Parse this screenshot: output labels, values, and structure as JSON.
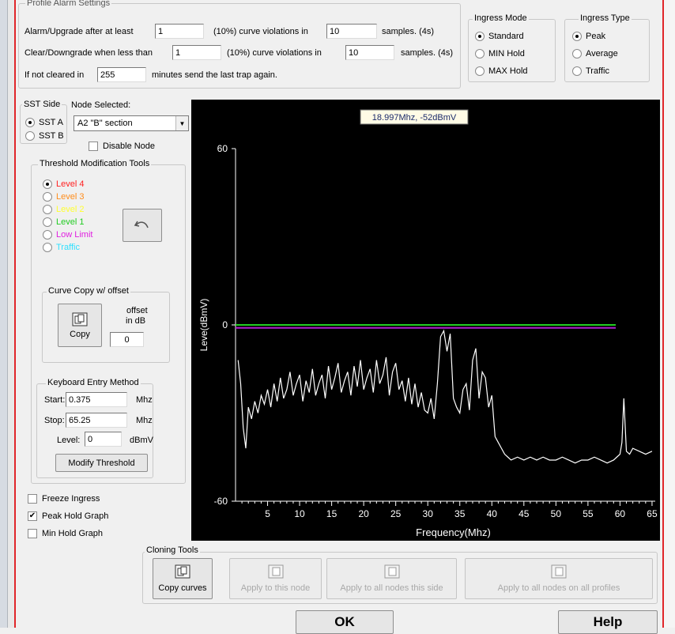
{
  "profile_alarm": {
    "title": "Profile Alarm Settings",
    "row1": {
      "prefix": "Alarm/Upgrade after at least",
      "count": "1",
      "mid": "(10%) curve violations in",
      "samples": "10",
      "suffix": "samples. (4s)"
    },
    "row2": {
      "prefix": "Clear/Downgrade when less than",
      "count": "1",
      "mid": "(10%) curve violations in",
      "samples": "10",
      "suffix": "samples. (4s)"
    },
    "row3": {
      "prefix": "If not cleared in",
      "minutes": "255",
      "suffix": "minutes send the last trap again."
    }
  },
  "ingress_mode": {
    "title": "Ingress Mode",
    "options": [
      "Standard",
      "MIN Hold",
      "MAX Hold"
    ],
    "selected": 0
  },
  "ingress_type": {
    "title": "Ingress Type",
    "options": [
      "Peak",
      "Average",
      "Traffic"
    ],
    "selected": 0
  },
  "sst_side": {
    "title": "SST Side",
    "options": [
      "SST A",
      "SST B"
    ],
    "selected": 0
  },
  "node_selected": {
    "title": "Node Selected:",
    "value": "A2 \"B\" section",
    "disable_label": "Disable Node"
  },
  "threshold_tools": {
    "title": "Threshold Modification Tools",
    "levels": [
      {
        "label": "Level 4",
        "color": "#ff2020",
        "checked": true
      },
      {
        "label": "Level 3",
        "color": "#ff8c1a",
        "checked": false
      },
      {
        "label": "Level 2",
        "color": "#ffff30",
        "checked": false
      },
      {
        "label": "Level 1",
        "color": "#22cc22",
        "checked": false
      },
      {
        "label": "Low Limit",
        "color": "#e020e0",
        "checked": false
      },
      {
        "label": "Traffic",
        "color": "#30e0ff",
        "checked": false
      }
    ],
    "undo_icon": "undo-arrow-icon"
  },
  "curve_copy": {
    "title": "Curve Copy w/ offset",
    "copy_label": "Copy",
    "offset_label_1": "offset",
    "offset_label_2": "in dB",
    "offset_value": "0"
  },
  "keyboard_entry": {
    "title": "Keyboard Entry Method",
    "start_label": "Start:",
    "start_value": "0.375",
    "start_unit": "Mhz",
    "stop_label": "Stop:",
    "stop_value": "65.25",
    "stop_unit": "Mhz",
    "level_label": "Level:",
    "level_value": "0",
    "level_unit": "dBmV",
    "modify_label": "Modify Threshold"
  },
  "options": [
    {
      "label": "Freeze Ingress",
      "checked": false
    },
    {
      "label": "Peak Hold Graph",
      "checked": true
    },
    {
      "label": "Min Hold Graph",
      "checked": false
    }
  ],
  "chart_data": {
    "type": "line",
    "xlabel": "Frequency(Mhz)",
    "ylabel": "Leve(dBmV)",
    "xlim": [
      0,
      65.5
    ],
    "ylim": [
      -60,
      60
    ],
    "xticks": [
      5,
      10,
      15,
      20,
      25,
      30,
      35,
      40,
      45,
      50,
      55,
      60,
      65
    ],
    "yticks": [
      60,
      0,
      -60
    ],
    "tooltip": "18.997Mhz, -52dBmV",
    "threshold_lines": [
      {
        "name": "Level 1",
        "value": 0,
        "color": "#22cc22"
      },
      {
        "name": "Low Limit",
        "value": -1,
        "color": "#b020d0"
      }
    ],
    "series": [
      {
        "color": "#ffffff",
        "x": [
          0.4,
          0.8,
          1.2,
          1.6,
          2.0,
          2.5,
          3.0,
          3.5,
          4.0,
          4.5,
          5.0,
          5.5,
          6.0,
          6.5,
          7.0,
          7.5,
          8.0,
          8.5,
          9.0,
          9.5,
          10.0,
          10.5,
          11.0,
          11.5,
          12.0,
          12.5,
          13.0,
          13.5,
          14.0,
          14.5,
          15.0,
          15.5,
          16.0,
          16.5,
          17.0,
          17.5,
          18.0,
          18.5,
          19.0,
          19.5,
          20.0,
          20.5,
          21.0,
          21.5,
          22.0,
          22.5,
          23.0,
          23.5,
          24.0,
          24.5,
          25.0,
          25.5,
          26.0,
          26.5,
          27.0,
          27.5,
          28.0,
          28.5,
          29.0,
          29.5,
          30.0,
          30.5,
          31.0,
          31.5,
          32.0,
          32.5,
          33.0,
          33.5,
          34.0,
          34.5,
          35.0,
          35.5,
          36.0,
          36.5,
          37.0,
          37.5,
          38.0,
          38.5,
          39.0,
          39.5,
          40.0,
          40.5,
          41.0,
          41.5,
          42.0,
          42.5,
          43.0,
          44.0,
          45.0,
          46.0,
          47.0,
          48.0,
          49.0,
          50.0,
          51.0,
          52.0,
          53.0,
          54.0,
          55.0,
          56.0,
          57.0,
          58.0,
          59.0,
          59.5,
          60.0,
          60.3,
          60.6,
          61.0,
          61.5,
          62.0,
          63.0,
          64.0,
          65.0
        ],
        "y": [
          -12,
          -20,
          -35,
          -42,
          -28,
          -32,
          -26,
          -30,
          -24,
          -27,
          -22,
          -28,
          -20,
          -26,
          -18,
          -25,
          -22,
          -16,
          -24,
          -20,
          -17,
          -26,
          -19,
          -23,
          -15,
          -24,
          -20,
          -17,
          -25,
          -14,
          -22,
          -18,
          -13,
          -23,
          -19,
          -16,
          -24,
          -14,
          -21,
          -12,
          -22,
          -18,
          -15,
          -23,
          -12,
          -20,
          -17,
          -11,
          -24,
          -16,
          -13,
          -22,
          -19,
          -26,
          -18,
          -27,
          -20,
          -28,
          -23,
          -29,
          -30,
          -25,
          -32,
          -20,
          -4,
          -2,
          -9,
          -3,
          -25,
          -28,
          -30,
          -22,
          -20,
          -29,
          -12,
          -8,
          -25,
          -16,
          -18,
          -28,
          -24,
          -38,
          -40,
          -42,
          -44,
          -45,
          -46,
          -45,
          -46,
          -45,
          -46,
          -45,
          -46,
          -46,
          -45,
          -46,
          -47,
          -46,
          -46,
          -45,
          -46,
          -47,
          -46,
          -45,
          -44,
          -40,
          -25,
          -43,
          -44,
          -42,
          -43,
          -44,
          -43
        ]
      }
    ]
  },
  "cloning_tools": {
    "title": "Cloning Tools",
    "buttons": [
      {
        "label": "Copy curves",
        "enabled": true
      },
      {
        "label": "Apply to this node",
        "enabled": false
      },
      {
        "label": "Apply to all nodes this side",
        "enabled": false
      },
      {
        "label": "Apply to all nodes on all profiles",
        "enabled": false
      }
    ]
  },
  "footer": {
    "ok_label": "OK",
    "help_label": "Help"
  }
}
